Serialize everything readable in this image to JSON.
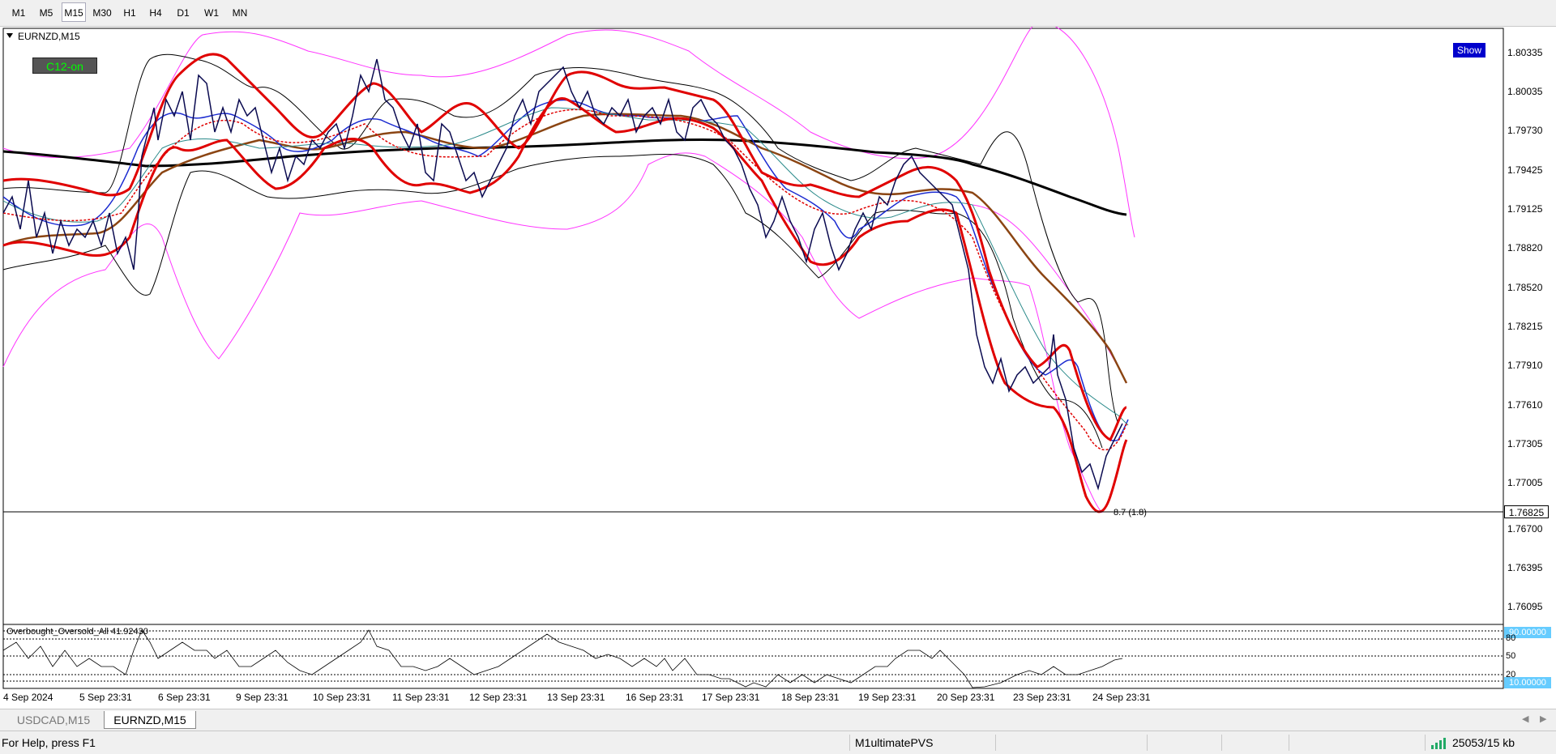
{
  "toolbar": {
    "timeframes": [
      "M1",
      "M5",
      "M15",
      "M30",
      "H1",
      "H4",
      "D1",
      "W1",
      "MN"
    ],
    "active": "M15"
  },
  "chart": {
    "symbol_title": "EURNZD,M15",
    "c12_button": "C12-on",
    "show_button": "Show",
    "current_price": "1.76825",
    "line_annotation": "8.7 (1.8)",
    "price_axis": [
      "1.80335",
      "1.80035",
      "1.79730",
      "1.79425",
      "1.79125",
      "1.78820",
      "1.78520",
      "1.78215",
      "1.77910",
      "1.77610",
      "1.77305",
      "1.77005",
      "1.76700",
      "1.76395",
      "1.76095"
    ],
    "date_axis": [
      "4 Sep 2024",
      "5 Sep 23:31",
      "6 Sep 23:31",
      "9 Sep 23:31",
      "10 Sep 23:31",
      "11 Sep 23:31",
      "12 Sep 23:31",
      "13 Sep 23:31",
      "16 Sep 23:31",
      "17 Sep 23:31",
      "18 Sep 23:31",
      "19 Sep 23:31",
      "20 Sep 23:31",
      "23 Sep 23:31",
      "24 Sep 23:31"
    ],
    "colors": {
      "ma_red": "#e00000",
      "ma_blue": "#1a2ad0",
      "ma_brown": "#8b4513",
      "ma_black": "#000000",
      "envelope": "#ff33ff",
      "bands": "#000000",
      "arrows_up": "#00e000",
      "arrows_down": "#e00000"
    }
  },
  "indicator": {
    "title": "Overbought_Oversold_All 41.92430",
    "upper_level": "90.00000",
    "lower_level": "10.00000",
    "levels": [
      "80",
      "50",
      "20"
    ]
  },
  "symbol_tabs": [
    {
      "label": "USDCAD,M15",
      "active": false
    },
    {
      "label": "EURNZD,M15",
      "active": true
    }
  ],
  "status_bar": {
    "help": "For Help, press F1",
    "profile": "M1ultimatePVS",
    "traffic": "25053/15 kb"
  }
}
